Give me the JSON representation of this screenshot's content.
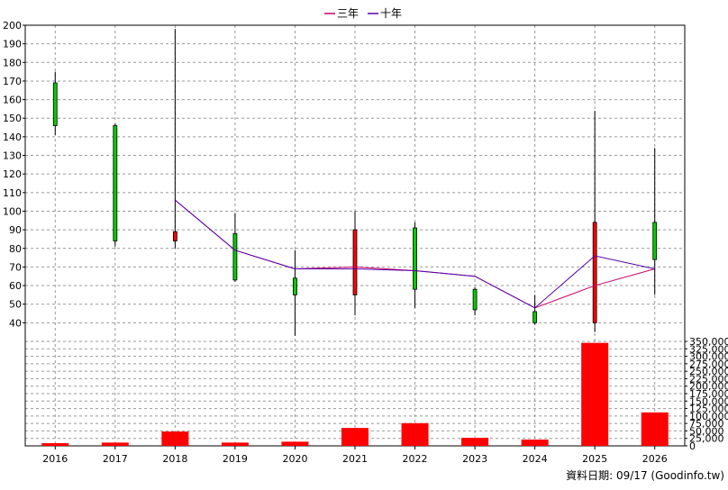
{
  "legend": [
    {
      "label": "三年",
      "color": "#cc0066"
    },
    {
      "label": "十年",
      "color": "#5500aa"
    }
  ],
  "footer": "資料日期: 09/17  (Goodinfo.tw)",
  "chart_data": {
    "type": "candlestick",
    "categories": [
      "2016",
      "2017",
      "2018",
      "2019",
      "2020",
      "2021",
      "2022",
      "2023",
      "2024",
      "2025",
      "2026"
    ],
    "price_axis": {
      "ylim": [
        30,
        200
      ],
      "ticks": [
        40,
        50,
        60,
        70,
        80,
        90,
        100,
        110,
        120,
        130,
        140,
        150,
        160,
        170,
        180,
        190,
        200
      ]
    },
    "volume_axis": {
      "ylim": [
        0,
        350000
      ],
      "ticks": [
        0,
        25000,
        50000,
        75000,
        100000,
        125000,
        150000,
        175000,
        200000,
        225000,
        250000,
        275000,
        300000,
        325000,
        350000
      ],
      "tick_labels": [
        "0",
        "25,000",
        "50,000",
        "75,000",
        "100,000",
        "125,000",
        "150,000",
        "175,000",
        "200,000",
        "225,000",
        "250,000",
        "275,000",
        "300,000",
        "325,000",
        "350,000"
      ]
    },
    "candles": [
      {
        "year": "2016",
        "open": 146,
        "high": 175,
        "low": 141,
        "close": 169,
        "color": "green"
      },
      {
        "year": "2017",
        "open": 146,
        "high": 147,
        "low": 81,
        "close": 84,
        "color": "green"
      },
      {
        "year": "2018",
        "open": 89,
        "high": 198,
        "low": 80,
        "close": 84,
        "color": "red"
      },
      {
        "year": "2019",
        "open": 88,
        "high": 99,
        "low": 62,
        "close": 63,
        "color": "green"
      },
      {
        "year": "2020",
        "open": 64,
        "high": 79,
        "low": 33,
        "close": 55,
        "color": "green"
      },
      {
        "year": "2021",
        "open": 55,
        "high": 100,
        "low": 44,
        "close": 90,
        "color": "red"
      },
      {
        "year": "2022",
        "open": 91,
        "high": 94,
        "low": 48,
        "close": 58,
        "color": "green"
      },
      {
        "year": "2023",
        "open": 58,
        "high": 59,
        "low": 44,
        "close": 47,
        "color": "green"
      },
      {
        "year": "2024",
        "open": 46,
        "high": 55,
        "low": 39,
        "close": 40,
        "color": "green"
      },
      {
        "year": "2025",
        "open": 40,
        "high": 154,
        "low": 35,
        "close": 94,
        "color": "red"
      },
      {
        "year": "2026",
        "open": 94,
        "high": 134,
        "low": 55,
        "close": 74,
        "color": "green"
      }
    ],
    "volume": [
      9000,
      11000,
      48000,
      11000,
      14000,
      60000,
      76000,
      27000,
      21000,
      345000,
      112000
    ],
    "series": [
      {
        "name": "三年",
        "color": "#cc0066",
        "points": [
          [
            "2018",
            106
          ],
          [
            "2019",
            79
          ],
          [
            "2020",
            69
          ],
          [
            "2021",
            70
          ],
          [
            "2022",
            68
          ],
          [
            "2023",
            65
          ],
          [
            "2024",
            48
          ],
          [
            "2025",
            60
          ],
          [
            "2026",
            69
          ]
        ]
      },
      {
        "name": "十年",
        "color": "#5500aa",
        "points": [
          [
            "2018",
            106
          ],
          [
            "2019",
            79
          ],
          [
            "2020",
            69
          ],
          [
            "2021",
            69
          ],
          [
            "2022",
            68
          ],
          [
            "2023",
            65
          ],
          [
            "2024",
            48
          ],
          [
            "2025",
            76
          ],
          [
            "2026",
            69
          ]
        ]
      }
    ],
    "grid": true
  }
}
